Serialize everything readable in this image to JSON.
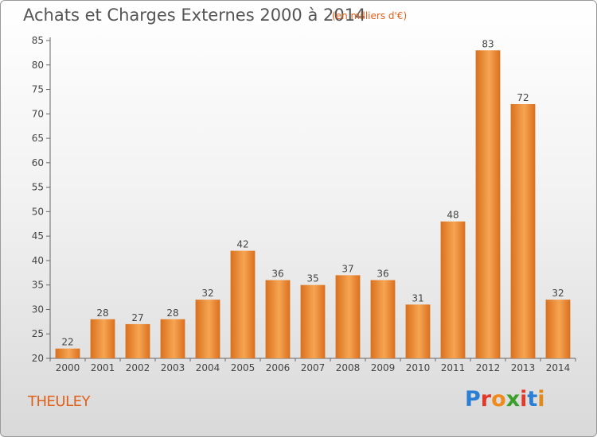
{
  "header": {
    "title": "Achats et Charges Externes 2000 à 2014",
    "subtitle": "(en milliers d'€)"
  },
  "footer": {
    "commune": "THEULEY",
    "logo_text": "Proxiti",
    "logo_colors": [
      "#2a7fd4",
      "#e03a2a",
      "#f08a1a",
      "#3aa02a",
      "#e03a2a",
      "#2a7fd4",
      "#e08a1a"
    ]
  },
  "chart_data": {
    "type": "bar",
    "categories": [
      "2000",
      "2001",
      "2002",
      "2003",
      "2004",
      "2005",
      "2006",
      "2007",
      "2008",
      "2009",
      "2010",
      "2011",
      "2012",
      "2013",
      "2014"
    ],
    "values": [
      22,
      28,
      27,
      28,
      32,
      42,
      36,
      35,
      37,
      36,
      31,
      48,
      83,
      72,
      32
    ],
    "ylim": [
      20,
      85
    ],
    "yticks": [
      20,
      25,
      30,
      35,
      40,
      45,
      50,
      55,
      60,
      65,
      70,
      75,
      80,
      85
    ],
    "grid": false,
    "bar_color_light": "#f6a552",
    "bar_color_dark": "#d9701e"
  }
}
